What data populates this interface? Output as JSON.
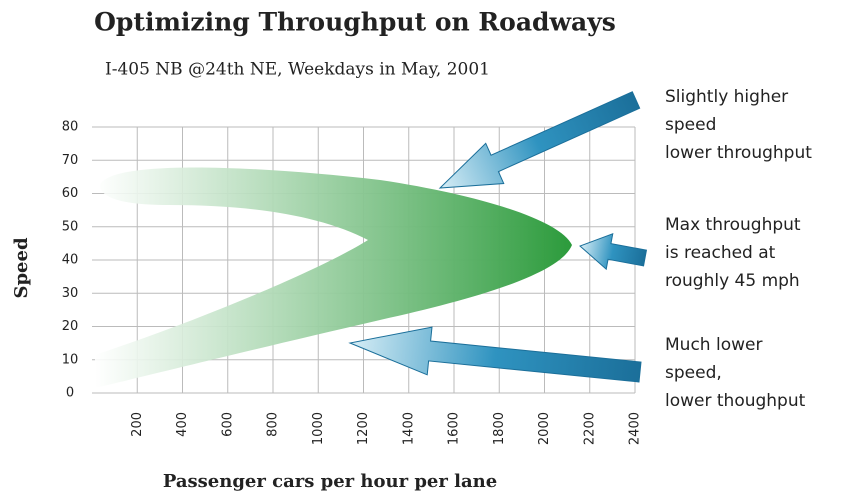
{
  "chart_data": {
    "type": "line",
    "title": "Optimizing Throughput on Roadways",
    "subtitle": "I-405 NB @24th NE, Weekdays in May, 2001",
    "x_label": "Passenger cars per hour per lane",
    "y_label": "Speed",
    "xlim": [
      0,
      2400
    ],
    "xticks": [
      200,
      400,
      600,
      800,
      1000,
      1200,
      1400,
      1600,
      1800,
      2000,
      2200,
      2400
    ],
    "ylim": [
      0,
      80
    ],
    "yticks": [
      0,
      10,
      20,
      30,
      40,
      50,
      60,
      70,
      80
    ],
    "grid": true,
    "color": "#2a9a3a",
    "annotations": [
      {
        "lines": [
          "Slightly higher",
          "speed",
          "lower throughput"
        ]
      },
      {
        "lines": [
          "Max throughput",
          "is reached at",
          "roughly 45 mph"
        ]
      },
      {
        "lines": [
          "Much lower",
          "speed,",
          "lower thoughput"
        ]
      }
    ]
  }
}
